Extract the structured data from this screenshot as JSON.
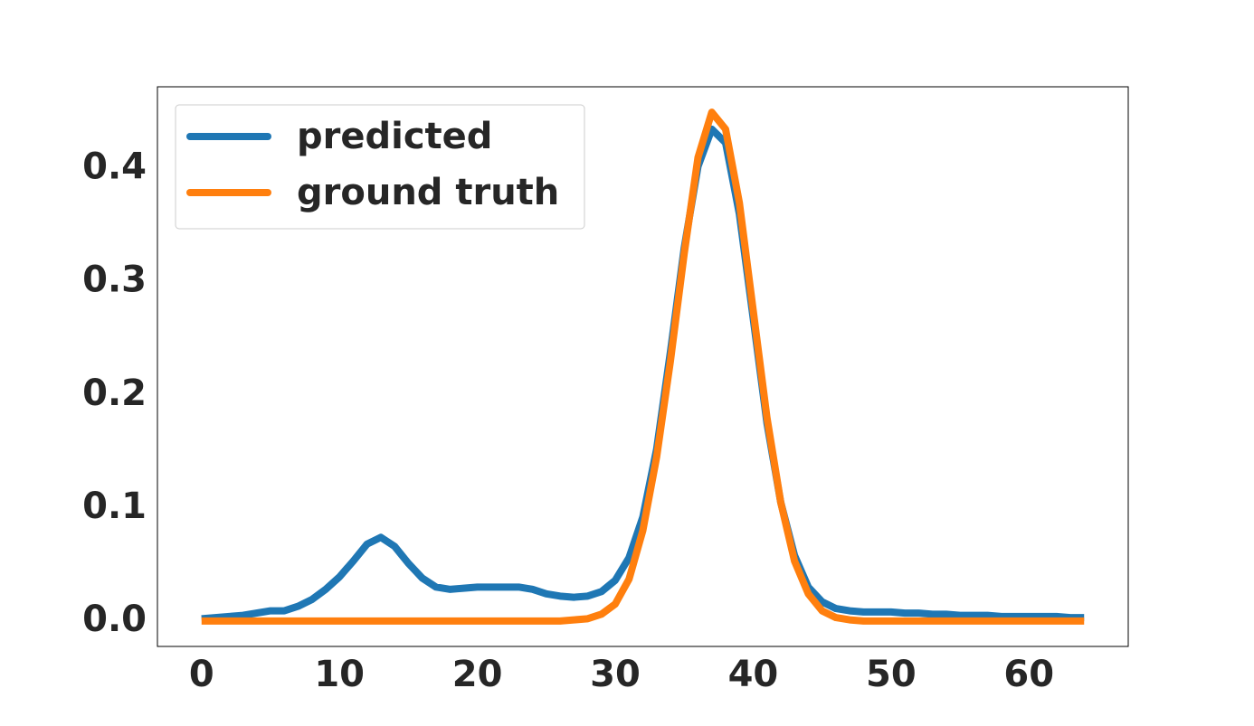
{
  "chart_data": {
    "type": "line",
    "x": [
      0,
      1,
      2,
      3,
      4,
      5,
      6,
      7,
      8,
      9,
      10,
      11,
      12,
      13,
      14,
      15,
      16,
      17,
      18,
      19,
      20,
      21,
      22,
      23,
      24,
      25,
      26,
      27,
      28,
      29,
      30,
      31,
      32,
      33,
      34,
      35,
      36,
      37,
      38,
      39,
      40,
      41,
      42,
      43,
      44,
      45,
      46,
      47,
      48,
      49,
      50,
      51,
      52,
      53,
      54,
      55,
      56,
      57,
      58,
      59,
      60,
      61,
      62,
      63,
      64
    ],
    "series": [
      {
        "name": "predicted",
        "color": "#1f77b4",
        "values": [
          0.002,
          0.003,
          0.004,
          0.005,
          0.007,
          0.009,
          0.009,
          0.013,
          0.019,
          0.028,
          0.039,
          0.053,
          0.068,
          0.074,
          0.066,
          0.051,
          0.038,
          0.03,
          0.028,
          0.029,
          0.03,
          0.03,
          0.03,
          0.03,
          0.028,
          0.024,
          0.022,
          0.021,
          0.022,
          0.026,
          0.036,
          0.056,
          0.092,
          0.152,
          0.238,
          0.33,
          0.402,
          0.435,
          0.423,
          0.36,
          0.268,
          0.175,
          0.105,
          0.058,
          0.03,
          0.017,
          0.011,
          0.009,
          0.008,
          0.008,
          0.008,
          0.007,
          0.007,
          0.006,
          0.006,
          0.005,
          0.005,
          0.005,
          0.004,
          0.004,
          0.004,
          0.004,
          0.004,
          0.003,
          0.003
        ]
      },
      {
        "name": "ground truth",
        "color": "#ff7f0e",
        "values": [
          0,
          0,
          0,
          0,
          0,
          0,
          0,
          0,
          0,
          0,
          0,
          0,
          0,
          0,
          0,
          0,
          0,
          0,
          0,
          0,
          0,
          0,
          0,
          0,
          0,
          0,
          0,
          0.001,
          0.002,
          0.006,
          0.015,
          0.037,
          0.08,
          0.145,
          0.23,
          0.325,
          0.41,
          0.45,
          0.435,
          0.37,
          0.275,
          0.18,
          0.105,
          0.053,
          0.024,
          0.009,
          0.003,
          0.001,
          0,
          0,
          0,
          0,
          0,
          0,
          0,
          0,
          0,
          0,
          0,
          0,
          0,
          0,
          0,
          0,
          0
        ]
      }
    ],
    "xlim": [
      -3.2,
      67.2
    ],
    "xticks": [
      0,
      10,
      20,
      30,
      40,
      50,
      60
    ],
    "ylim": [
      -0.0225,
      0.4725
    ],
    "yticks": [
      {
        "value": 0,
        "label": "0.0"
      },
      0.1,
      0.2,
      0.3,
      0.4
    ],
    "legend": "upper left",
    "grid": false
  }
}
